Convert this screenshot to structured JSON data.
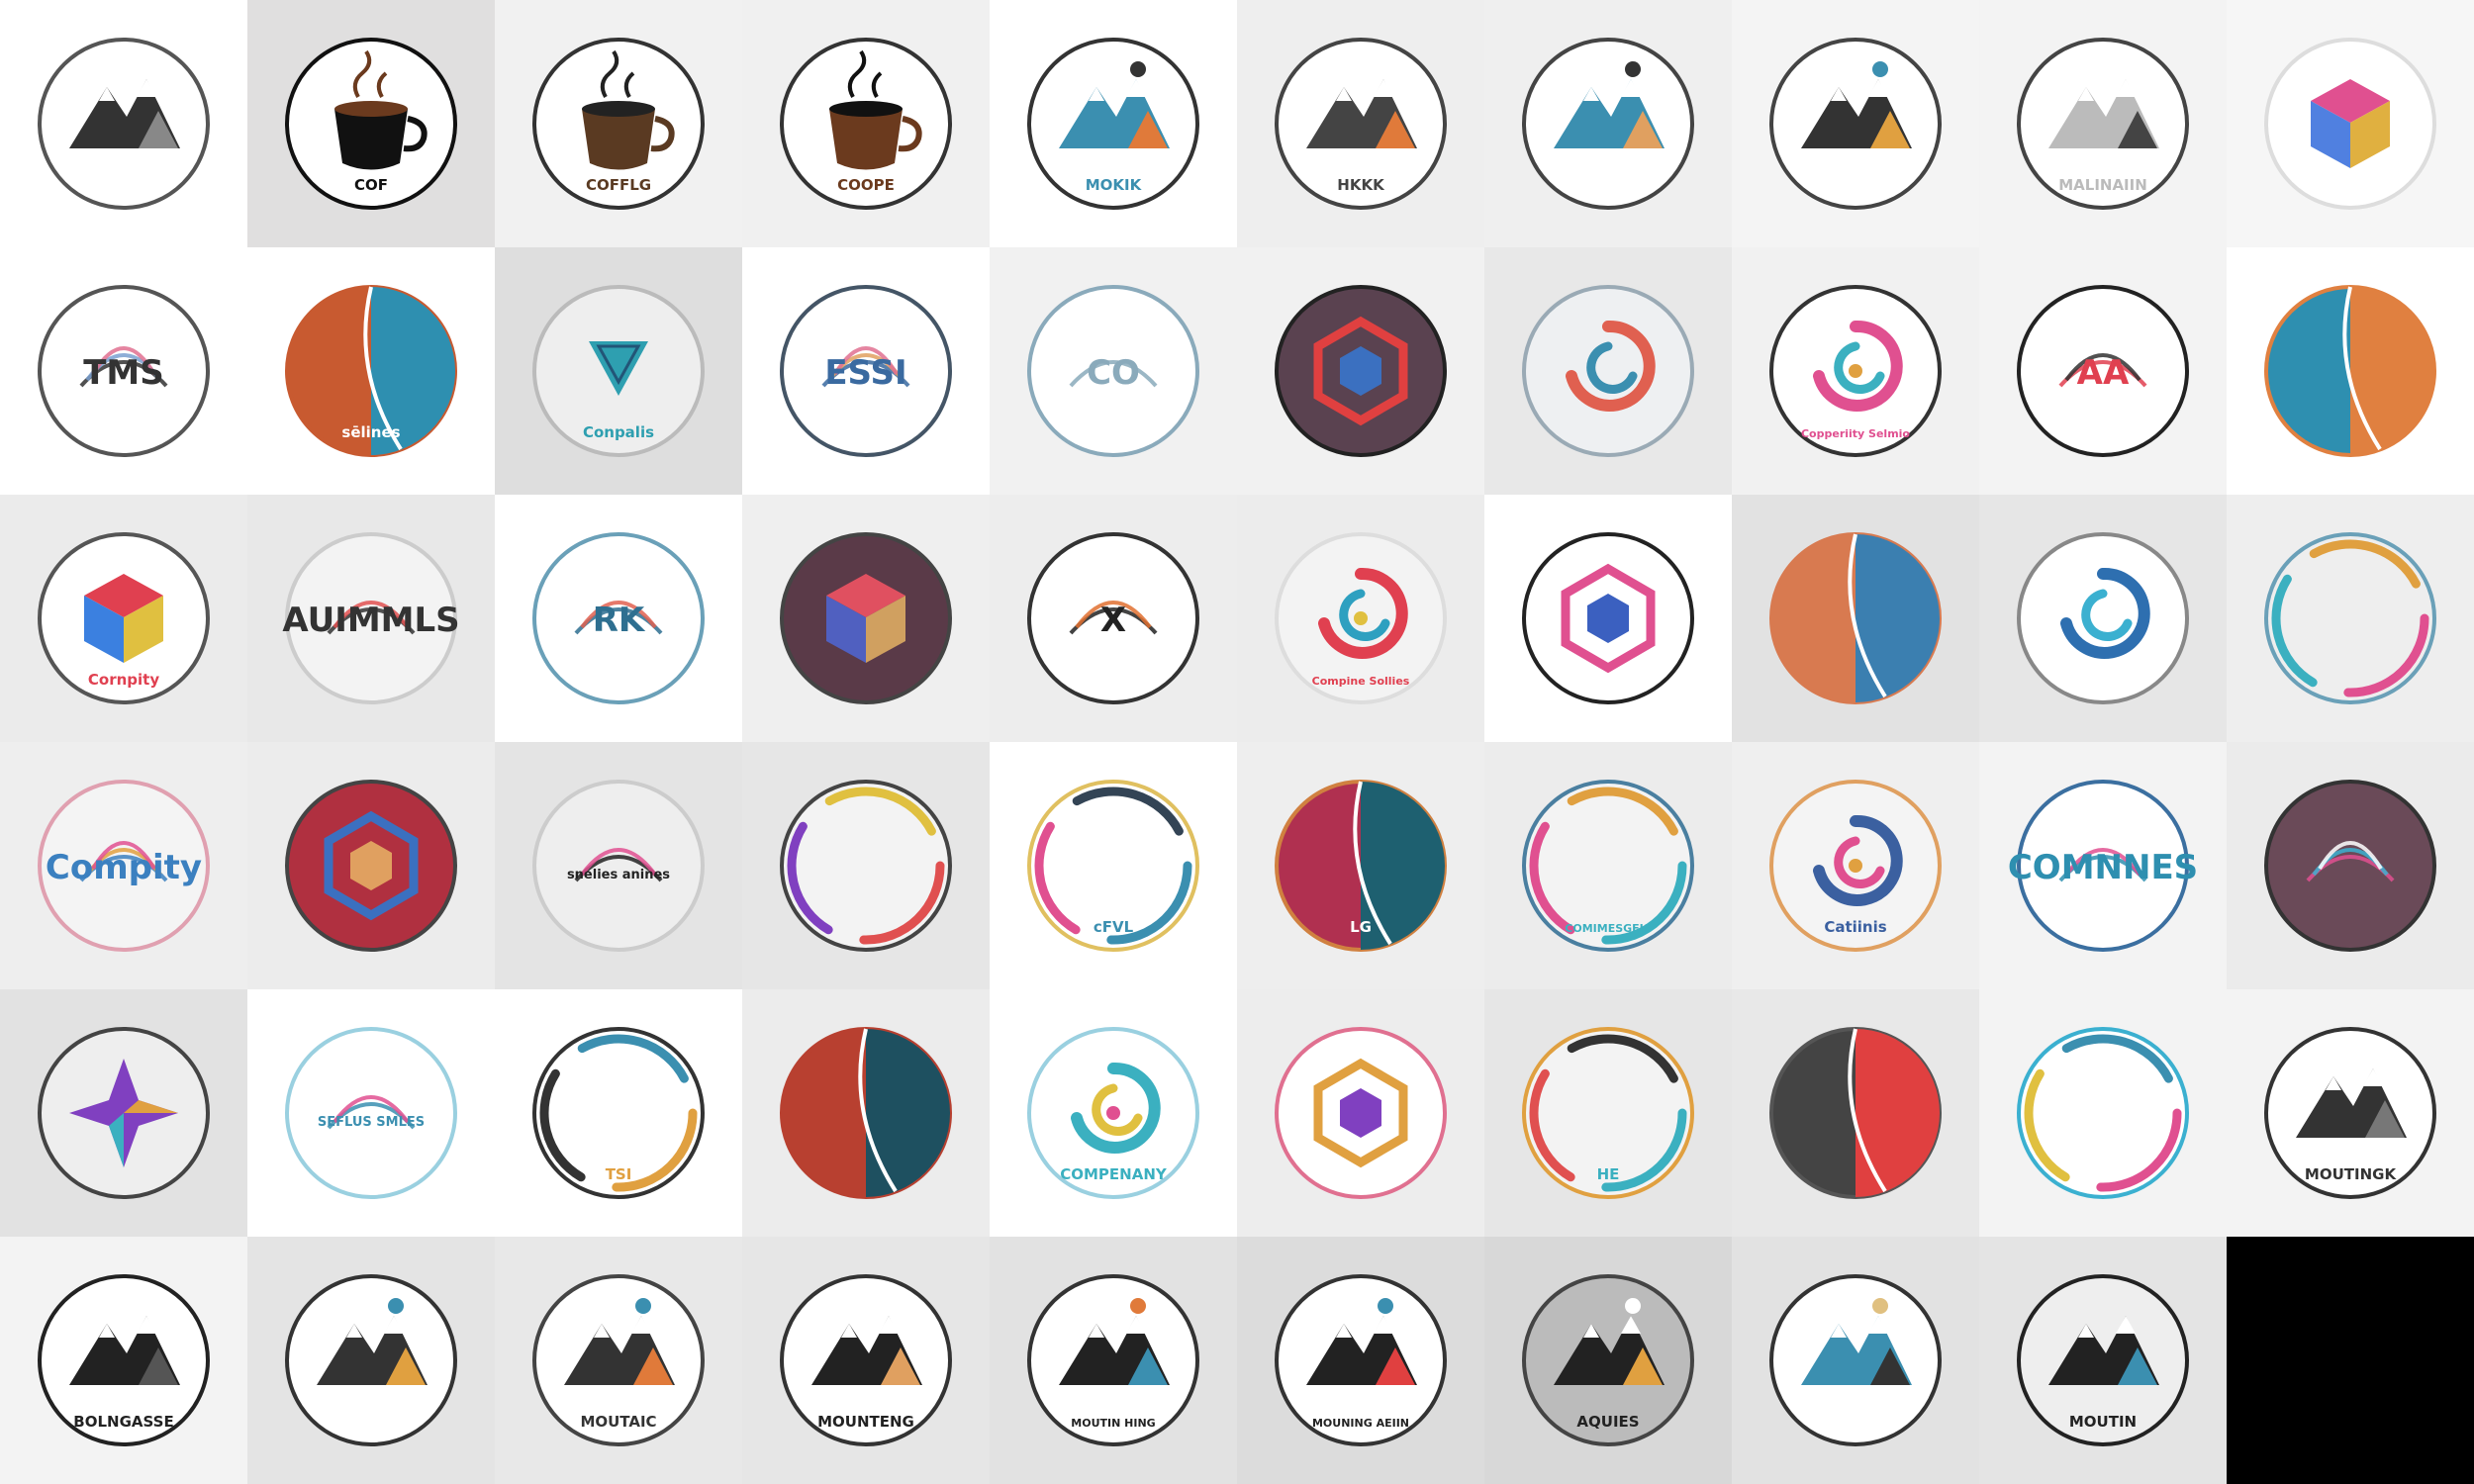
{
  "grid": {
    "columns": 10,
    "rows": 6
  },
  "tiles": [
    {
      "bg": "#ffffff",
      "ring": "#555555",
      "fill": "#ffffff",
      "motif": "mountain",
      "colors": [
        "#333333",
        "#888888"
      ],
      "text": ""
    },
    {
      "bg": "#e0dfdf",
      "ring": "#111111",
      "fill": "#ffffff",
      "motif": "coffee",
      "colors": [
        "#111111",
        "#6b3a1e"
      ],
      "text": "COF"
    },
    {
      "bg": "#f1f1f1",
      "ring": "#333333",
      "fill": "#ffffff",
      "motif": "coffee",
      "colors": [
        "#5a3a22",
        "#222222"
      ],
      "text": "COFFLG"
    },
    {
      "bg": "#f0f0f0",
      "ring": "#333333",
      "fill": "#ffffff",
      "motif": "coffee",
      "colors": [
        "#6b3a1e",
        "#111111"
      ],
      "text": "COOPE"
    },
    {
      "bg": "#ffffff",
      "ring": "#333333",
      "fill": "#ffffff",
      "motif": "mountain",
      "colors": [
        "#3b8fb0",
        "#e07a3a",
        "#333333"
      ],
      "text": "MOKIK"
    },
    {
      "bg": "#eeeeee",
      "ring": "#444444",
      "fill": "#ffffff",
      "motif": "mountain",
      "colors": [
        "#444444",
        "#e07a3a"
      ],
      "text": "HKKK"
    },
    {
      "bg": "#efefef",
      "ring": "#444444",
      "fill": "#ffffff",
      "motif": "mountain",
      "colors": [
        "#3b8fb0",
        "#e0a060",
        "#333333"
      ],
      "text": ""
    },
    {
      "bg": "#f4f4f4",
      "ring": "#444444",
      "fill": "#ffffff",
      "motif": "mountain",
      "colors": [
        "#333333",
        "#e0a040",
        "#3b8fb0"
      ],
      "text": ""
    },
    {
      "bg": "#f3f3f3",
      "ring": "#444444",
      "fill": "#ffffff",
      "motif": "mountain",
      "colors": [
        "#bbbbbb",
        "#444444"
      ],
      "text": "MALINAIIN"
    },
    {
      "bg": "#f6f6f6",
      "ring": "#dddddd",
      "fill": "#ffffff",
      "motif": "cube",
      "colors": [
        "#e05090",
        "#5080e0",
        "#e0b040"
      ],
      "text": ""
    },
    {
      "bg": "#ffffff",
      "ring": "#555555",
      "fill": "#ffffff",
      "motif": "letters",
      "colors": [
        "#333333",
        "#7aa0d0",
        "#e07090"
      ],
      "text": "TMS"
    },
    {
      "bg": "#ffffff",
      "ring": "#c85a30",
      "fill": "#c85a30",
      "motif": "half",
      "colors": [
        "#2e8fb0",
        "#c85a30"
      ],
      "text": "sēlines"
    },
    {
      "bg": "#dedede",
      "ring": "#bbbbbb",
      "fill": "#eeeeee",
      "motif": "shield",
      "colors": [
        "#2e9fb0",
        "#225577"
      ],
      "text": "Conpalis"
    },
    {
      "bg": "#ffffff",
      "ring": "#445566",
      "fill": "#ffffff",
      "motif": "letters",
      "colors": [
        "#3a6aa0",
        "#e0a060",
        "#e07090"
      ],
      "text": "ESSI"
    },
    {
      "bg": "#f1f1f1",
      "ring": "#8aaabb",
      "fill": "#ffffff",
      "motif": "letters",
      "colors": [
        "#8aaabb"
      ],
      "text": "CO"
    },
    {
      "bg": "#f1f1f1",
      "ring": "#222222",
      "fill": "#5a4250",
      "motif": "hexagon",
      "colors": [
        "#e04040",
        "#3b70c0",
        "#ffffff"
      ],
      "text": ""
    },
    {
      "bg": "#e8e8e8",
      "ring": "#9aaab5",
      "fill": "#eef0f2",
      "motif": "swirl",
      "colors": [
        "#e06050",
        "#3b8fb0"
      ],
      "text": ""
    },
    {
      "bg": "#f1f1f1",
      "ring": "#333333",
      "fill": "#ffffff",
      "motif": "swirl",
      "colors": [
        "#e05090",
        "#3bb0c0",
        "#e0a040"
      ],
      "text": "Copperiity Selmio"
    },
    {
      "bg": "#f3f3f3",
      "ring": "#222222",
      "fill": "#ffffff",
      "motif": "letters",
      "colors": [
        "#e04050",
        "#333333"
      ],
      "text": "AA"
    },
    {
      "bg": "#ffffff",
      "ring": "#e08040",
      "fill": "#2e8fb0",
      "motif": "half",
      "colors": [
        "#e08040",
        "#2e8fb0",
        "#7aa040"
      ],
      "text": ""
    },
    {
      "bg": "#ebebeb",
      "ring": "#555555",
      "fill": "#ffffff",
      "motif": "cube",
      "colors": [
        "#e04050",
        "#3b80e0",
        "#e0c040"
      ],
      "text": "Cornpity"
    },
    {
      "bg": "#e8e8e8",
      "ring": "#cccccc",
      "fill": "#f3f3f3",
      "motif": "letters",
      "colors": [
        "#333333",
        "#e05050"
      ],
      "text": "AUIMMLS"
    },
    {
      "bg": "#ffffff",
      "ring": "#6aa0b8",
      "fill": "#ffffff",
      "motif": "letters",
      "colors": [
        "#2e6f90",
        "#e06050"
      ],
      "text": "RK"
    },
    {
      "bg": "#efefef",
      "ring": "#444444",
      "fill": "#5a3a48",
      "motif": "cube",
      "colors": [
        "#e05060",
        "#5060c0",
        "#d0a060"
      ],
      "text": ""
    },
    {
      "bg": "#ededed",
      "ring": "#333333",
      "fill": "#ffffff",
      "motif": "letters",
      "colors": [
        "#222222",
        "#e07030"
      ],
      "text": "X"
    },
    {
      "bg": "#ececec",
      "ring": "#dddddd",
      "fill": "#f3f3f3",
      "motif": "swirl",
      "colors": [
        "#e04050",
        "#2ea0c0",
        "#e0c040"
      ],
      "text": "Compine Sollies"
    },
    {
      "bg": "#ffffff",
      "ring": "#222222",
      "fill": "#ffffff",
      "motif": "hexagon",
      "colors": [
        "#e05090",
        "#3b60c0",
        "#222222"
      ],
      "text": ""
    },
    {
      "bg": "#e2e2e2",
      "ring": "#d87a50",
      "fill": "#d87a50",
      "motif": "half",
      "colors": [
        "#3b7fb0",
        "#d87a50"
      ],
      "text": ""
    },
    {
      "bg": "#e6e6e6",
      "ring": "#888888",
      "fill": "#ffffff",
      "motif": "swirl",
      "colors": [
        "#2e6fb0",
        "#3bb0d0"
      ],
      "text": ""
    },
    {
      "bg": "#eeeeee",
      "ring": "#6aa0b8",
      "fill": "#eeeeee",
      "motif": "arcs",
      "colors": [
        "#e05090",
        "#3bb0c0",
        "#e0a040"
      ],
      "text": ""
    },
    {
      "bg": "#eeeeee",
      "ring": "#e0a0b0",
      "fill": "#f4f4f4",
      "motif": "letters",
      "colors": [
        "#3b80c0",
        "#e0a040",
        "#e05090"
      ],
      "text": "Compity"
    },
    {
      "bg": "#ececec",
      "ring": "#444444",
      "fill": "#b03040",
      "motif": "hexagon",
      "colors": [
        "#3b70c0",
        "#e0a060",
        "#ffffff"
      ],
      "text": ""
    },
    {
      "bg": "#e4e4e4",
      "ring": "#cccccc",
      "fill": "#eeeeee",
      "motif": "letters",
      "colors": [
        "#222222",
        "#e05090"
      ],
      "text": "snelies  anines"
    },
    {
      "bg": "#e6e6e6",
      "ring": "#444444",
      "fill": "#f3f3f3",
      "motif": "arcs",
      "colors": [
        "#e05050",
        "#8040c0",
        "#e0c040"
      ],
      "text": ""
    },
    {
      "bg": "#ffffff",
      "ring": "#e0c060",
      "fill": "#ffffff",
      "motif": "arcs",
      "colors": [
        "#3b8fb0",
        "#e05090",
        "#334455"
      ],
      "text": "cFVL"
    },
    {
      "bg": "#eeeeee",
      "ring": "#d08040",
      "fill": "#b03050",
      "motif": "half",
      "colors": [
        "#1e6070",
        "#d08040"
      ],
      "text": "LG"
    },
    {
      "bg": "#ececec",
      "ring": "#4a7fa0",
      "fill": "#f3f3f3",
      "motif": "arcs",
      "colors": [
        "#3bb0c0",
        "#e05090",
        "#e0a040"
      ],
      "text": "COMIMESGEIS"
    },
    {
      "bg": "#efefef",
      "ring": "#e0a060",
      "fill": "#f4f4f4",
      "motif": "swirl",
      "colors": [
        "#3b60a0",
        "#e05090",
        "#e0a040"
      ],
      "text": "Catiinis"
    },
    {
      "bg": "#f3f3f3",
      "ring": "#3b6fa0",
      "fill": "#ffffff",
      "motif": "letters",
      "colors": [
        "#2e8fb0",
        "#e05090"
      ],
      "text": "COMNNES"
    },
    {
      "bg": "#ebebeb",
      "ring": "#333333",
      "fill": "#6a4a58",
      "motif": "letters",
      "colors": [
        "#e05090",
        "#3bb0d0",
        "#ffffff"
      ],
      "text": ""
    },
    {
      "bg": "#e2e2e2",
      "ring": "#444444",
      "fill": "#eeeeee",
      "motif": "star",
      "colors": [
        "#8040c0",
        "#e0a040",
        "#3bb0c0"
      ],
      "text": ""
    },
    {
      "bg": "#ffffff",
      "ring": "#9ad0e0",
      "fill": "#ffffff",
      "motif": "letters",
      "colors": [
        "#3b8fb0",
        "#e05090"
      ],
      "text": "SEFLUS  SMLES"
    },
    {
      "bg": "#ffffff",
      "ring": "#333333",
      "fill": "#ffffff",
      "motif": "arcs",
      "colors": [
        "#e0a040",
        "#333333",
        "#3b8fb0"
      ],
      "text": "TSI"
    },
    {
      "bg": "#ececec",
      "ring": "#b84030",
      "fill": "#b84030",
      "motif": "half",
      "colors": [
        "#1e5060",
        "#b84030"
      ],
      "text": ""
    },
    {
      "bg": "#ffffff",
      "ring": "#9ad0e0",
      "fill": "#ffffff",
      "motif": "swirl",
      "colors": [
        "#3bb0c0",
        "#e0c040",
        "#e05090"
      ],
      "text": "COMPENANY"
    },
    {
      "bg": "#ededed",
      "ring": "#e07090",
      "fill": "#ffffff",
      "motif": "hexagon",
      "colors": [
        "#e0a040",
        "#8040c0",
        "#3b8fb0"
      ],
      "text": ""
    },
    {
      "bg": "#e6e6e6",
      "ring": "#e0a040",
      "fill": "#f3f3f3",
      "motif": "arcs",
      "colors": [
        "#3bb0c0",
        "#e05050",
        "#333333"
      ],
      "text": "HE"
    },
    {
      "bg": "#e8e8e8",
      "ring": "#555555",
      "fill": "#444444",
      "motif": "half",
      "colors": [
        "#e04040",
        "#3bb0c0"
      ],
      "text": ""
    },
    {
      "bg": "#f3f3f3",
      "ring": "#3bb0d0",
      "fill": "#ffffff",
      "motif": "arcs",
      "colors": [
        "#e05090",
        "#e0c040",
        "#3b8fb0"
      ],
      "text": ""
    },
    {
      "bg": "#f3f3f3",
      "ring": "#333333",
      "fill": "#ffffff",
      "motif": "mountain",
      "colors": [
        "#333333",
        "#777777"
      ],
      "text": "MOUTINGK"
    },
    {
      "bg": "#f3f3f3",
      "ring": "#222222",
      "fill": "#ffffff",
      "motif": "mountain",
      "colors": [
        "#222222",
        "#555555"
      ],
      "text": "BOLNGASSE"
    },
    {
      "bg": "#e4e4e4",
      "ring": "#333333",
      "fill": "#ffffff",
      "motif": "mountain",
      "colors": [
        "#333333",
        "#e0a040",
        "#3b8fb0"
      ],
      "text": ""
    },
    {
      "bg": "#e8e8e8",
      "ring": "#444444",
      "fill": "#ffffff",
      "motif": "mountain",
      "colors": [
        "#333333",
        "#e07a3a",
        "#3b8fb0"
      ],
      "text": "MOUTAIC"
    },
    {
      "bg": "#e6e6e6",
      "ring": "#333333",
      "fill": "#ffffff",
      "motif": "mountain",
      "colors": [
        "#222222",
        "#e0a060"
      ],
      "text": "MOUNTENG"
    },
    {
      "bg": "#e2e2e2",
      "ring": "#333333",
      "fill": "#ffffff",
      "motif": "mountain",
      "colors": [
        "#222222",
        "#3b8fb0",
        "#e07a3a"
      ],
      "text": "MOUTIN HING"
    },
    {
      "bg": "#dcdcdc",
      "ring": "#333333",
      "fill": "#ffffff",
      "motif": "mountain",
      "colors": [
        "#222222",
        "#e04040",
        "#3b8fb0"
      ],
      "text": "MOUNING AEIIN"
    },
    {
      "bg": "#d8d8d8",
      "ring": "#444444",
      "fill": "#bbbbbb",
      "motif": "mountain",
      "colors": [
        "#222222",
        "#e0a040",
        "#ffffff"
      ],
      "text": "AQUIES"
    },
    {
      "bg": "#e2e2e2",
      "ring": "#333333",
      "fill": "#ffffff",
      "motif": "mountain",
      "colors": [
        "#3b8fb0",
        "#333333",
        "#e0c080"
      ],
      "text": ""
    },
    {
      "bg": "#e4e4e4",
      "ring": "#222222",
      "fill": "#eeeeee",
      "motif": "mountain",
      "colors": [
        "#222222",
        "#3b8fb0"
      ],
      "text": "MOUTIN"
    },
    {
      "bg": "#000000",
      "ring": "",
      "fill": "",
      "motif": "none",
      "colors": [],
      "text": ""
    }
  ]
}
